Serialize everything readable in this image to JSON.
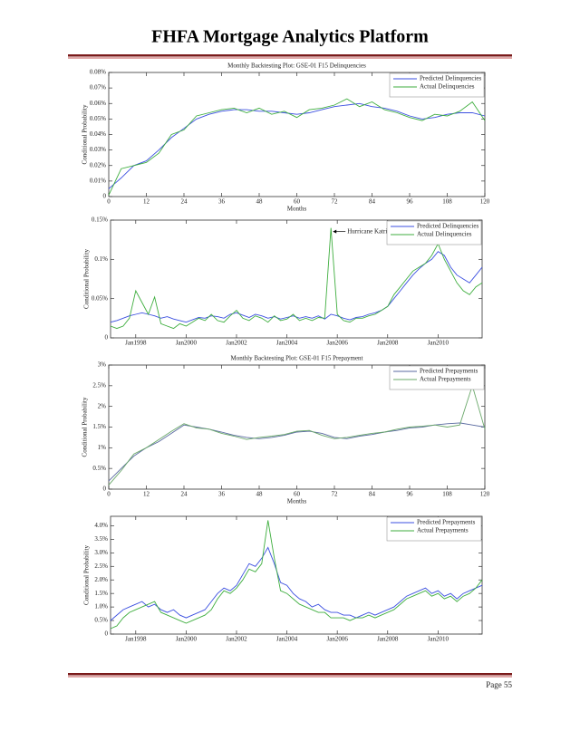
{
  "header": {
    "title": "FHFA Mortgage Analytics Platform"
  },
  "footer": {
    "page": "Page 55"
  },
  "chart_data": [
    {
      "type": "line",
      "title": "Monthly Backtesting Plot: GSE-01 F15 Delinquencies",
      "xlabel": "Months",
      "ylabel": "Conditional Probability",
      "x": [
        0,
        4,
        8,
        12,
        16,
        20,
        24,
        28,
        32,
        36,
        40,
        44,
        48,
        52,
        56,
        60,
        64,
        68,
        72,
        76,
        80,
        84,
        88,
        92,
        96,
        100,
        104,
        108,
        112,
        116,
        120
      ],
      "xlim": [
        0,
        120
      ],
      "xticks": [
        0,
        12,
        24,
        36,
        48,
        60,
        72,
        84,
        96,
        108,
        120
      ],
      "ylim": [
        0,
        0.08
      ],
      "yticks": [
        0,
        {
          "value": 0.01,
          "label": "0.01%"
        },
        {
          "value": 0.02,
          "label": "0.02%"
        },
        {
          "value": 0.03,
          "label": "0.03%"
        },
        {
          "value": 0.04,
          "label": "0.04%"
        },
        {
          "value": 0.05,
          "label": "0.05%"
        },
        {
          "value": 0.06,
          "label": "0.06%"
        },
        {
          "value": 0.07,
          "label": "0.07%"
        },
        {
          "value": 0.08,
          "label": "0.08%"
        }
      ],
      "legend": "upper right",
      "series": [
        {
          "name": "Predicted Delinquencies",
          "color": "#3b4fe0",
          "values": [
            0.005,
            0.012,
            0.02,
            0.023,
            0.03,
            0.038,
            0.044,
            0.05,
            0.053,
            0.055,
            0.056,
            0.056,
            0.055,
            0.055,
            0.054,
            0.053,
            0.054,
            0.056,
            0.058,
            0.059,
            0.06,
            0.058,
            0.057,
            0.055,
            0.052,
            0.05,
            0.051,
            0.053,
            0.054,
            0.054,
            0.052
          ]
        },
        {
          "name": "Actual Delinquencies",
          "color": "#3fae3f",
          "values": [
            0.001,
            0.018,
            0.02,
            0.022,
            0.028,
            0.04,
            0.043,
            0.052,
            0.054,
            0.056,
            0.057,
            0.054,
            0.057,
            0.053,
            0.055,
            0.051,
            0.056,
            0.057,
            0.059,
            0.063,
            0.058,
            0.061,
            0.056,
            0.054,
            0.051,
            0.049,
            0.053,
            0.052,
            0.055,
            0.061,
            0.049
          ]
        }
      ]
    },
    {
      "type": "line",
      "ylabel": "Conditional Probability",
      "x": [
        "1997-01",
        "1997-04",
        "1997-07",
        "1997-10",
        "1998-01",
        "1998-04",
        "1998-07",
        "1998-10",
        "1999-01",
        "1999-04",
        "1999-07",
        "1999-10",
        "2000-01",
        "2000-04",
        "2000-07",
        "2000-10",
        "2001-01",
        "2001-04",
        "2001-07",
        "2001-10",
        "2002-01",
        "2002-04",
        "2002-07",
        "2002-10",
        "2003-01",
        "2003-04",
        "2003-07",
        "2003-10",
        "2004-01",
        "2004-04",
        "2004-07",
        "2004-10",
        "2005-01",
        "2005-04",
        "2005-07",
        "2005-10",
        "2006-01",
        "2006-04",
        "2006-07",
        "2006-10",
        "2007-01",
        "2007-04",
        "2007-07",
        "2007-10",
        "2008-01",
        "2008-04",
        "2008-07",
        "2008-10",
        "2009-01",
        "2009-04",
        "2009-07",
        "2009-10",
        "2010-01",
        "2010-04",
        "2010-07",
        "2010-10",
        "2011-01",
        "2011-04",
        "2011-07",
        "2011-10"
      ],
      "xlim": [
        "1997-01",
        "2011-10"
      ],
      "xticks": [
        {
          "value": "1998-01",
          "label": "Jan1998"
        },
        {
          "value": "2000-01",
          "label": "Jan2000"
        },
        {
          "value": "2002-01",
          "label": "Jan2002"
        },
        {
          "value": "2004-01",
          "label": "Jan2004"
        },
        {
          "value": "2006-01",
          "label": "Jan2006"
        },
        {
          "value": "2008-01",
          "label": "Jan2008"
        },
        {
          "value": "2010-01",
          "label": "Jan2010"
        }
      ],
      "ylim": [
        0,
        0.15
      ],
      "yticks": [
        0,
        {
          "value": 0.05,
          "label": "0.05%"
        },
        {
          "value": 0.1,
          "label": "0.1%"
        },
        {
          "value": 0.15,
          "label": "0.15%"
        }
      ],
      "legend": "upper right",
      "annotations": [
        {
          "text": "Hurricane Katrina",
          "x": "2005-10",
          "y": 0.14
        }
      ],
      "series": [
        {
          "name": "Predicted Delinquencies",
          "color": "#3b4fe0",
          "values": [
            0.02,
            0.022,
            0.025,
            0.028,
            0.03,
            0.032,
            0.03,
            0.028,
            0.025,
            0.027,
            0.024,
            0.022,
            0.02,
            0.023,
            0.026,
            0.025,
            0.028,
            0.027,
            0.025,
            0.03,
            0.032,
            0.029,
            0.026,
            0.03,
            0.028,
            0.025,
            0.027,
            0.024,
            0.026,
            0.028,
            0.025,
            0.027,
            0.025,
            0.028,
            0.024,
            0.03,
            0.028,
            0.025,
            0.023,
            0.026,
            0.027,
            0.03,
            0.032,
            0.035,
            0.04,
            0.05,
            0.06,
            0.07,
            0.08,
            0.088,
            0.095,
            0.1,
            0.11,
            0.105,
            0.09,
            0.08,
            0.075,
            0.07,
            0.08,
            0.09
          ]
        },
        {
          "name": "Actual Delinquencies",
          "color": "#3fae3f",
          "values": [
            0.015,
            0.012,
            0.015,
            0.025,
            0.06,
            0.045,
            0.03,
            0.052,
            0.018,
            0.015,
            0.012,
            0.018,
            0.015,
            0.02,
            0.025,
            0.022,
            0.03,
            0.022,
            0.02,
            0.028,
            0.035,
            0.025,
            0.022,
            0.028,
            0.025,
            0.02,
            0.028,
            0.022,
            0.024,
            0.03,
            0.022,
            0.025,
            0.022,
            0.026,
            0.025,
            0.14,
            0.03,
            0.022,
            0.02,
            0.025,
            0.025,
            0.028,
            0.03,
            0.035,
            0.04,
            0.055,
            0.065,
            0.075,
            0.085,
            0.09,
            0.095,
            0.105,
            0.12,
            0.1,
            0.085,
            0.07,
            0.06,
            0.055,
            0.065,
            0.07
          ]
        }
      ]
    },
    {
      "type": "line",
      "title": "Monthly Backtesting Plot: GSE-01 F15 Prepayment",
      "xlabel": "Months",
      "ylabel": "Conditional Probability",
      "x": [
        0,
        4,
        8,
        12,
        16,
        20,
        24,
        28,
        32,
        36,
        40,
        44,
        48,
        52,
        56,
        60,
        64,
        68,
        72,
        76,
        80,
        84,
        88,
        92,
        96,
        100,
        104,
        108,
        112,
        116,
        120
      ],
      "xlim": [
        0,
        120
      ],
      "xticks": [
        0,
        12,
        24,
        36,
        48,
        60,
        72,
        84,
        96,
        108,
        120
      ],
      "ylim": [
        0,
        3
      ],
      "yticks": [
        0,
        {
          "value": 0.5,
          "label": "0.5%"
        },
        {
          "value": 1,
          "label": "1%"
        },
        {
          "value": 1.5,
          "label": "1.5%"
        },
        {
          "value": 2,
          "label": "2%"
        },
        {
          "value": 2.5,
          "label": "2.5%"
        },
        {
          "value": 3,
          "label": "3%"
        }
      ],
      "legend": "upper right",
      "series": [
        {
          "name": "Predicted Prepayments",
          "color": "#5a6aa0",
          "values": [
            0.2,
            0.5,
            0.8,
            1.0,
            1.15,
            1.35,
            1.55,
            1.5,
            1.45,
            1.38,
            1.3,
            1.25,
            1.22,
            1.25,
            1.3,
            1.38,
            1.4,
            1.35,
            1.25,
            1.22,
            1.28,
            1.32,
            1.38,
            1.42,
            1.48,
            1.5,
            1.55,
            1.58,
            1.6,
            1.55,
            1.5
          ]
        },
        {
          "name": "Actual Prepayments",
          "color": "#6aa86a",
          "values": [
            0.1,
            0.45,
            0.85,
            1.0,
            1.2,
            1.4,
            1.58,
            1.48,
            1.45,
            1.35,
            1.28,
            1.2,
            1.25,
            1.28,
            1.32,
            1.4,
            1.42,
            1.3,
            1.22,
            1.25,
            1.3,
            1.35,
            1.38,
            1.45,
            1.5,
            1.52,
            1.55,
            1.5,
            1.55,
            2.5,
            1.45
          ]
        }
      ]
    },
    {
      "type": "line",
      "ylabel": "Conditional Probability",
      "x": [
        "1997-01",
        "1997-04",
        "1997-07",
        "1997-10",
        "1998-01",
        "1998-04",
        "1998-07",
        "1998-10",
        "1999-01",
        "1999-04",
        "1999-07",
        "1999-10",
        "2000-01",
        "2000-04",
        "2000-07",
        "2000-10",
        "2001-01",
        "2001-04",
        "2001-07",
        "2001-10",
        "2002-01",
        "2002-04",
        "2002-07",
        "2002-10",
        "2003-01",
        "2003-04",
        "2003-07",
        "2003-10",
        "2004-01",
        "2004-04",
        "2004-07",
        "2004-10",
        "2005-01",
        "2005-04",
        "2005-07",
        "2005-10",
        "2006-01",
        "2006-04",
        "2006-07",
        "2006-10",
        "2007-01",
        "2007-04",
        "2007-07",
        "2007-10",
        "2008-01",
        "2008-04",
        "2008-07",
        "2008-10",
        "2009-01",
        "2009-04",
        "2009-07",
        "2009-10",
        "2010-01",
        "2010-04",
        "2010-07",
        "2010-10",
        "2011-01",
        "2011-04",
        "2011-07",
        "2011-10"
      ],
      "xlim": [
        "1997-01",
        "2011-10"
      ],
      "xticks": [
        {
          "value": "1998-01",
          "label": "Jan1998"
        },
        {
          "value": "2000-01",
          "label": "Jan2000"
        },
        {
          "value": "2002-01",
          "label": "Jan2002"
        },
        {
          "value": "2004-01",
          "label": "Jan2004"
        },
        {
          "value": "2006-01",
          "label": "Jan2006"
        },
        {
          "value": "2008-01",
          "label": "Jan2008"
        },
        {
          "value": "2010-01",
          "label": "Jan2010"
        }
      ],
      "ylim": [
        0,
        4.35
      ],
      "yticks": [
        0,
        {
          "value": 0.5,
          "label": "0.5%"
        },
        {
          "value": 1,
          "label": "1.0%"
        },
        {
          "value": 1.5,
          "label": "1.5%"
        },
        {
          "value": 2,
          "label": "2.0%"
        },
        {
          "value": 2.5,
          "label": "2.5%"
        },
        {
          "value": 3,
          "label": "3.0%"
        },
        {
          "value": 3.5,
          "label": "3.5%"
        },
        {
          "value": 4,
          "label": "4.0%"
        }
      ],
      "legend": "upper right",
      "series": [
        {
          "name": "Predicted Prepayments",
          "color": "#3b4fe0",
          "values": [
            0.5,
            0.7,
            0.9,
            1.0,
            1.1,
            1.2,
            1.0,
            1.1,
            0.9,
            0.8,
            0.9,
            0.7,
            0.6,
            0.7,
            0.8,
            0.9,
            1.2,
            1.5,
            1.7,
            1.6,
            1.8,
            2.2,
            2.6,
            2.5,
            2.8,
            3.2,
            2.6,
            1.9,
            1.8,
            1.5,
            1.3,
            1.2,
            1.0,
            1.1,
            0.9,
            0.8,
            0.8,
            0.7,
            0.7,
            0.6,
            0.7,
            0.8,
            0.7,
            0.8,
            0.9,
            1.0,
            1.2,
            1.4,
            1.5,
            1.6,
            1.7,
            1.5,
            1.6,
            1.4,
            1.5,
            1.3,
            1.5,
            1.6,
            1.7,
            1.8
          ]
        },
        {
          "name": "Actual Prepayments",
          "color": "#3fae3f",
          "values": [
            0.2,
            0.3,
            0.6,
            0.8,
            0.9,
            1.0,
            1.1,
            1.2,
            0.8,
            0.7,
            0.6,
            0.5,
            0.4,
            0.5,
            0.6,
            0.7,
            0.9,
            1.3,
            1.6,
            1.5,
            1.7,
            2.0,
            2.4,
            2.3,
            2.6,
            4.2,
            2.8,
            1.6,
            1.5,
            1.3,
            1.1,
            1.0,
            0.9,
            0.8,
            0.8,
            0.6,
            0.6,
            0.6,
            0.5,
            0.6,
            0.6,
            0.7,
            0.6,
            0.7,
            0.8,
            0.9,
            1.1,
            1.3,
            1.4,
            1.5,
            1.6,
            1.4,
            1.5,
            1.3,
            1.4,
            1.2,
            1.4,
            1.5,
            1.7,
            2.0
          ]
        }
      ]
    }
  ]
}
